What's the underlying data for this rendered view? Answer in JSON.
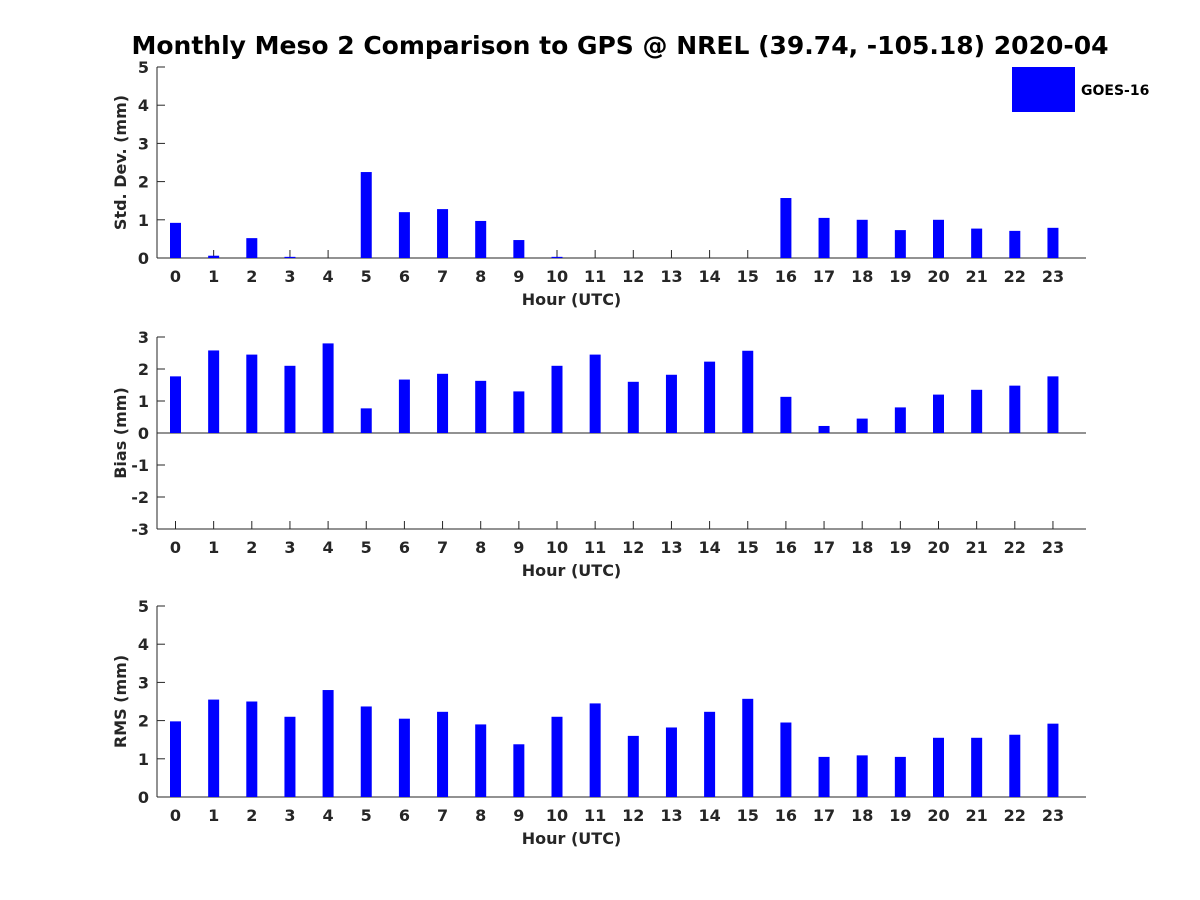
{
  "title": "Monthly Meso 2 Comparison to GPS @ NREL (39.74, -105.18) 2020-04",
  "legend": {
    "label": "GOES-16",
    "color": "#0000ff"
  },
  "bar_color": "#0000ff",
  "chart_data": [
    {
      "type": "bar",
      "name": "std",
      "xlabel": "Hour (UTC)",
      "ylabel": "Std. Dev. (mm)",
      "categories": [
        "0",
        "1",
        "2",
        "3",
        "4",
        "5",
        "6",
        "7",
        "8",
        "9",
        "10",
        "11",
        "12",
        "13",
        "14",
        "15",
        "16",
        "17",
        "18",
        "19",
        "20",
        "21",
        "22",
        "23"
      ],
      "values": [
        0.92,
        0.06,
        0.52,
        0.03,
        0,
        2.25,
        1.2,
        1.28,
        0.97,
        0.47,
        0.03,
        0,
        0,
        0,
        0,
        0,
        1.57,
        1.05,
        1.0,
        0.73,
        1.0,
        0.77,
        0.71,
        0.79
      ],
      "ylim": [
        0,
        5
      ],
      "yticks": [
        0,
        1,
        2,
        3,
        4,
        5
      ],
      "grid": false,
      "legend_position": "top-right"
    },
    {
      "type": "bar",
      "name": "bias",
      "xlabel": "Hour (UTC)",
      "ylabel": "Bias (mm)",
      "categories": [
        "0",
        "1",
        "2",
        "3",
        "4",
        "5",
        "6",
        "7",
        "8",
        "9",
        "10",
        "11",
        "12",
        "13",
        "14",
        "15",
        "16",
        "17",
        "18",
        "19",
        "20",
        "21",
        "22",
        "23"
      ],
      "values": [
        1.77,
        2.58,
        2.45,
        2.1,
        2.8,
        0.77,
        1.67,
        1.85,
        1.63,
        1.3,
        2.1,
        2.45,
        1.6,
        1.82,
        2.23,
        2.57,
        1.13,
        0.22,
        0.45,
        0.8,
        1.2,
        1.35,
        1.48,
        1.77
      ],
      "ylim": [
        -3,
        3
      ],
      "yticks": [
        -3,
        -2,
        -1,
        0,
        1,
        2,
        3
      ],
      "grid": false
    },
    {
      "type": "bar",
      "name": "rms",
      "xlabel": "Hour (UTC)",
      "ylabel": "RMS (mm)",
      "categories": [
        "0",
        "1",
        "2",
        "3",
        "4",
        "5",
        "6",
        "7",
        "8",
        "9",
        "10",
        "11",
        "12",
        "13",
        "14",
        "15",
        "16",
        "17",
        "18",
        "19",
        "20",
        "21",
        "22",
        "23"
      ],
      "values": [
        1.98,
        2.55,
        2.5,
        2.1,
        2.8,
        2.37,
        2.05,
        2.23,
        1.9,
        1.38,
        2.1,
        2.45,
        1.6,
        1.82,
        2.23,
        2.57,
        1.95,
        1.05,
        1.09,
        1.05,
        1.55,
        1.55,
        1.63,
        1.92
      ],
      "ylim": [
        0,
        5
      ],
      "yticks": [
        0,
        1,
        2,
        3,
        4,
        5
      ],
      "grid": false
    }
  ]
}
